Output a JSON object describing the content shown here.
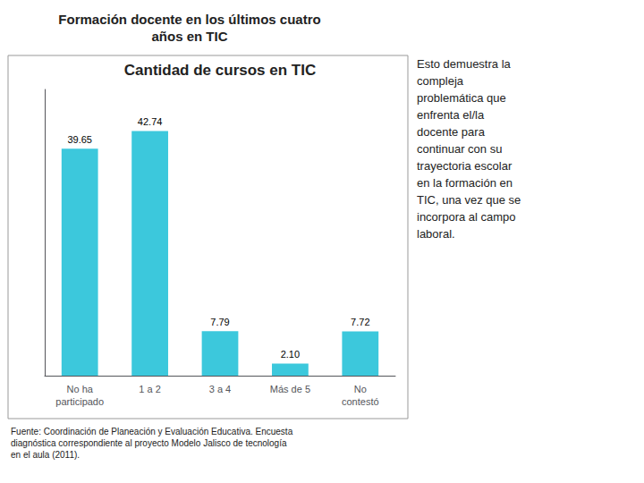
{
  "chart_data": {
    "type": "bar",
    "title": "Formación docente en los últimos cuatro\naños en TIC",
    "subtitle": "Cantidad de cursos en TIC",
    "categories": [
      "No ha\nparticipado",
      "1 a 2",
      "3 a 4",
      "Más de 5",
      "No\ncontestó"
    ],
    "values": [
      39.65,
      42.74,
      7.79,
      2.1,
      7.72
    ],
    "value_labels": [
      "39.65",
      "42.74",
      "7.79",
      "2.10",
      "7.72"
    ],
    "data_labels": true,
    "color": "#3CC8DC",
    "ylim": [
      0,
      50
    ],
    "tick_labels": "x",
    "grid": false,
    "annotations": [
      "Esto demuestra la\ncompleja\nproblemática que\nenfrenta el/la\ndocente para\ncontinuar con su\ntrayectoria escolar\nen la formación en\nTIC, una vez que se\nincorpora al campo\nlaboral.",
      "Fuente: Coordinación de Planeación y Evaluación Educativa. Encuesta\ndiagnóstica correspondiente al proyecto Modelo Jalisco de tecnología\nen el aula (2011)."
    ]
  }
}
